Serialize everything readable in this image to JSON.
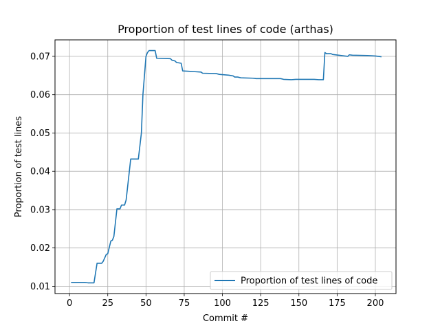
{
  "chart_data": {
    "type": "line",
    "title": "Proportion of test lines of code (arthas)",
    "xlabel": "Commit #",
    "ylabel": "Proportion of test lines",
    "xlim": [
      -9.5,
      213.5
    ],
    "ylim": [
      0.0081,
      0.0743
    ],
    "x_ticks": [
      0,
      25,
      50,
      75,
      100,
      125,
      150,
      175,
      200
    ],
    "x_tick_labels": [
      "0",
      "25",
      "50",
      "75",
      "100",
      "125",
      "150",
      "175",
      "200"
    ],
    "y_ticks": [
      0.01,
      0.02,
      0.03,
      0.04,
      0.05,
      0.06,
      0.07
    ],
    "y_tick_labels": [
      "0.01",
      "0.02",
      "0.03",
      "0.04",
      "0.05",
      "0.06",
      "0.07"
    ],
    "grid": true,
    "legend_position": "lower-right",
    "series": [
      {
        "name": "Proportion of test lines of code",
        "color": "#1f77b4",
        "points": [
          [
            1,
            0.011
          ],
          [
            10,
            0.011
          ],
          [
            12,
            0.0109
          ],
          [
            16,
            0.0109
          ],
          [
            18,
            0.016
          ],
          [
            21,
            0.016
          ],
          [
            22,
            0.0165
          ],
          [
            24,
            0.0183
          ],
          [
            25,
            0.0185
          ],
          [
            27,
            0.0218
          ],
          [
            28,
            0.022
          ],
          [
            29,
            0.023
          ],
          [
            31,
            0.0302
          ],
          [
            33,
            0.0302
          ],
          [
            34,
            0.0312
          ],
          [
            36,
            0.0312
          ],
          [
            37,
            0.0325
          ],
          [
            38,
            0.036
          ],
          [
            40,
            0.0432
          ],
          [
            45,
            0.0432
          ],
          [
            47,
            0.05
          ],
          [
            48,
            0.06
          ],
          [
            50,
            0.07
          ],
          [
            51,
            0.071
          ],
          [
            52,
            0.0715
          ],
          [
            56,
            0.0715
          ],
          [
            57,
            0.0695
          ],
          [
            66,
            0.0694
          ],
          [
            67,
            0.069
          ],
          [
            69,
            0.0688
          ],
          [
            70,
            0.0684
          ],
          [
            73,
            0.0682
          ],
          [
            74,
            0.0662
          ],
          [
            78,
            0.0661
          ],
          [
            82,
            0.066
          ],
          [
            86,
            0.0659
          ],
          [
            87,
            0.0656
          ],
          [
            96,
            0.0655
          ],
          [
            98,
            0.0653
          ],
          [
            104,
            0.0651
          ],
          [
            107,
            0.0649
          ],
          [
            108,
            0.0646
          ],
          [
            110,
            0.0646
          ],
          [
            112,
            0.0644
          ],
          [
            120,
            0.0643
          ],
          [
            122,
            0.0642
          ],
          [
            138,
            0.0642
          ],
          [
            140,
            0.064
          ],
          [
            145,
            0.0639
          ],
          [
            148,
            0.064
          ],
          [
            160,
            0.064
          ],
          [
            163,
            0.0639
          ],
          [
            166,
            0.0639
          ],
          [
            167,
            0.071
          ],
          [
            168,
            0.0707
          ],
          [
            171,
            0.0707
          ],
          [
            172,
            0.0705
          ],
          [
            176,
            0.0703
          ],
          [
            180,
            0.0701
          ],
          [
            182,
            0.07
          ],
          [
            183,
            0.0704
          ],
          [
            185,
            0.0703
          ],
          [
            195,
            0.0702
          ],
          [
            200,
            0.0701
          ],
          [
            204,
            0.0699
          ]
        ]
      }
    ]
  }
}
